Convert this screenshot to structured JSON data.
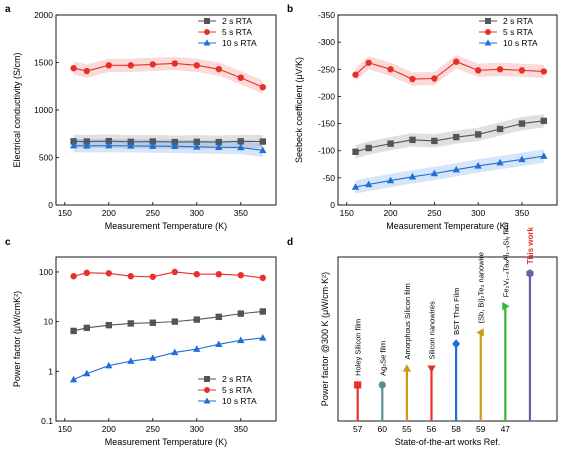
{
  "chart_data": [
    {
      "panel": "a",
      "type": "line",
      "xlabel": "Measurement Temperature (K)",
      "ylabel": "Electrical conductivity (S/cm)",
      "xlim": [
        140,
        390
      ],
      "ylim": [
        0,
        2000
      ],
      "xticks": [
        "150",
        "200",
        "250",
        "300",
        "350"
      ],
      "yticks": [
        "0",
        "500",
        "1000",
        "1500",
        "2000"
      ],
      "x": [
        160,
        175,
        200,
        225,
        250,
        275,
        300,
        325,
        350,
        375
      ],
      "legend_position": "top-right",
      "series": [
        {
          "name": "2 s RTA",
          "color": "#555555",
          "marker": "square",
          "values": [
            670,
            668,
            672,
            665,
            668,
            662,
            665,
            662,
            670,
            668
          ]
        },
        {
          "name": "5 s RTA",
          "color": "#e8302a",
          "marker": "circle",
          "values": [
            1440,
            1410,
            1470,
            1470,
            1480,
            1490,
            1470,
            1430,
            1340,
            1240
          ]
        },
        {
          "name": "10 s RTA",
          "color": "#1f6fd6",
          "marker": "triangle",
          "values": [
            625,
            622,
            625,
            622,
            620,
            618,
            612,
            608,
            605,
            575
          ]
        }
      ]
    },
    {
      "panel": "b",
      "type": "line",
      "xlabel": "Measurement Temperature (K)",
      "ylabel": "Seebeck coefficient (μV/K)",
      "xlim": [
        140,
        390
      ],
      "ylim": [
        0,
        -350
      ],
      "xticks": [
        "150",
        "200",
        "250",
        "300",
        "350"
      ],
      "yticks": [
        "0",
        "-50",
        "-100",
        "-150",
        "-200",
        "-250",
        "-300",
        "-350"
      ],
      "x": [
        160,
        175,
        200,
        225,
        250,
        275,
        300,
        325,
        350,
        375
      ],
      "legend_position": "top-right",
      "series": [
        {
          "name": "2 s RTA",
          "color": "#555555",
          "marker": "square",
          "values": [
            -98,
            -105,
            -113,
            -120,
            -118,
            -125,
            -130,
            -140,
            -150,
            -155
          ]
        },
        {
          "name": "5 s RTA",
          "color": "#e8302a",
          "marker": "circle",
          "values": [
            -240,
            -262,
            -250,
            -232,
            -233,
            -264,
            -248,
            -250,
            -248,
            -246
          ]
        },
        {
          "name": "10 s RTA",
          "color": "#1f6fd6",
          "marker": "triangle",
          "values": [
            -33,
            -38,
            -45,
            -52,
            -58,
            -65,
            -72,
            -78,
            -84,
            -90
          ]
        }
      ]
    },
    {
      "panel": "c",
      "type": "line",
      "scale": "log",
      "xlabel": "Measurement Temperature (K)",
      "ylabel": "Power factor (μW/cmK²)",
      "xlim": [
        140,
        390
      ],
      "ylim": [
        0.1,
        200
      ],
      "xticks": [
        "150",
        "200",
        "250",
        "300",
        "350"
      ],
      "yticks": [
        "0.1",
        "1",
        "10",
        "100"
      ],
      "x": [
        160,
        175,
        200,
        225,
        250,
        275,
        300,
        325,
        350,
        375
      ],
      "legend_position": "bottom-right",
      "series": [
        {
          "name": "2 s RTA",
          "color": "#555555",
          "marker": "square",
          "values": [
            6.5,
            7.5,
            8.5,
            9.2,
            9.5,
            10,
            11,
            12.5,
            14.5,
            16
          ]
        },
        {
          "name": "5 s RTA",
          "color": "#e8302a",
          "marker": "circle",
          "values": [
            82,
            96,
            94,
            82,
            80,
            100,
            90,
            90,
            86,
            76
          ]
        },
        {
          "name": "10 s RTA",
          "color": "#1f6fd6",
          "marker": "triangle",
          "values": [
            0.68,
            0.9,
            1.3,
            1.6,
            1.85,
            2.4,
            2.8,
            3.5,
            4.2,
            4.7
          ]
        }
      ]
    },
    {
      "panel": "d",
      "type": "bar",
      "xlabel": "State-of-the-art works Ref.",
      "ylabel": "Power factor @300 K (μW/cm·K²)",
      "ylim": [
        0,
        100
      ],
      "categories": [
        "57",
        "60",
        "55",
        "56",
        "58",
        "59",
        "47",
        ""
      ],
      "values": [
        22,
        22,
        32,
        32,
        47,
        54,
        70,
        90
      ],
      "colors": [
        "#e8302a",
        "#5a8f91",
        "#cc9a12",
        "#e8302a",
        "#1f6fd6",
        "#cc9a12",
        "#33b83a",
        "#6c5fa8"
      ],
      "markers": [
        "square",
        "circle",
        "triangle-up",
        "triangle-down",
        "diamond",
        "triangle-left",
        "triangle-right",
        "hexagon"
      ],
      "labels": [
        "Holey Silicon film",
        "Ag₂Se film",
        "Amorphous Silicon film",
        "Silicon nanowires",
        "BST Thin Film",
        "(Sb, Bi)₂Te₃ nanowire",
        "Fe₂V₁₋ₓTaₓAl₁₋ᵧSiᵧ film",
        "This work"
      ],
      "highlight_index": 7
    }
  ]
}
